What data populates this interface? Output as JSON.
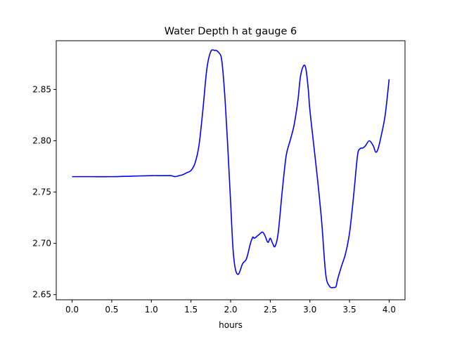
{
  "chart_data": {
    "type": "line",
    "title": "Water Depth h at gauge 6",
    "xlabel": "hours",
    "ylabel": "",
    "xlim": [
      -0.2,
      4.2
    ],
    "ylim": [
      2.645,
      2.8975
    ],
    "xticks": [
      0.0,
      0.5,
      1.0,
      1.5,
      2.0,
      2.5,
      3.0,
      3.5,
      4.0
    ],
    "xtick_labels": [
      "0.0",
      "0.5",
      "1.0",
      "1.5",
      "2.0",
      "2.5",
      "3.0",
      "3.5",
      "4.0"
    ],
    "yticks": [
      2.65,
      2.7,
      2.75,
      2.8,
      2.85
    ],
    "ytick_labels": [
      "2.65",
      "2.70",
      "2.75",
      "2.80",
      "2.85"
    ],
    "grid": false,
    "legend": "none",
    "series": [
      {
        "color": "#0000ff",
        "x": [
          0.0,
          0.25,
          0.5,
          0.75,
          1.0,
          1.1,
          1.2,
          1.25,
          1.3,
          1.35,
          1.4,
          1.45,
          1.5,
          1.55,
          1.6,
          1.65,
          1.7,
          1.75,
          1.8,
          1.82,
          1.85,
          1.88,
          1.9,
          1.93,
          1.96,
          2.0,
          2.03,
          2.06,
          2.1,
          2.15,
          2.2,
          2.25,
          2.28,
          2.3,
          2.35,
          2.4,
          2.43,
          2.47,
          2.5,
          2.53,
          2.56,
          2.6,
          2.65,
          2.7,
          2.75,
          2.8,
          2.85,
          2.88,
          2.92,
          2.95,
          2.98,
          3.0,
          3.05,
          3.1,
          3.15,
          3.2,
          3.25,
          3.3,
          3.33,
          3.35,
          3.4,
          3.45,
          3.5,
          3.55,
          3.6,
          3.63,
          3.67,
          3.7,
          3.75,
          3.8,
          3.83,
          3.86,
          3.9,
          3.95,
          4.0
        ],
        "y": [
          2.765,
          2.765,
          2.765,
          2.7655,
          2.766,
          2.766,
          2.766,
          2.766,
          2.765,
          2.766,
          2.767,
          2.769,
          2.771,
          2.778,
          2.795,
          2.83,
          2.87,
          2.887,
          2.888,
          2.888,
          2.886,
          2.882,
          2.87,
          2.84,
          2.8,
          2.74,
          2.695,
          2.675,
          2.67,
          2.68,
          2.685,
          2.7,
          2.706,
          2.705,
          2.708,
          2.711,
          2.708,
          2.701,
          2.705,
          2.7,
          2.697,
          2.71,
          2.75,
          2.785,
          2.8,
          2.815,
          2.84,
          2.862,
          2.873,
          2.87,
          2.85,
          2.83,
          2.795,
          2.76,
          2.72,
          2.67,
          2.658,
          2.657,
          2.658,
          2.665,
          2.678,
          2.69,
          2.71,
          2.745,
          2.785,
          2.792,
          2.793,
          2.795,
          2.8,
          2.795,
          2.789,
          2.792,
          2.805,
          2.825,
          2.86
        ]
      }
    ]
  }
}
